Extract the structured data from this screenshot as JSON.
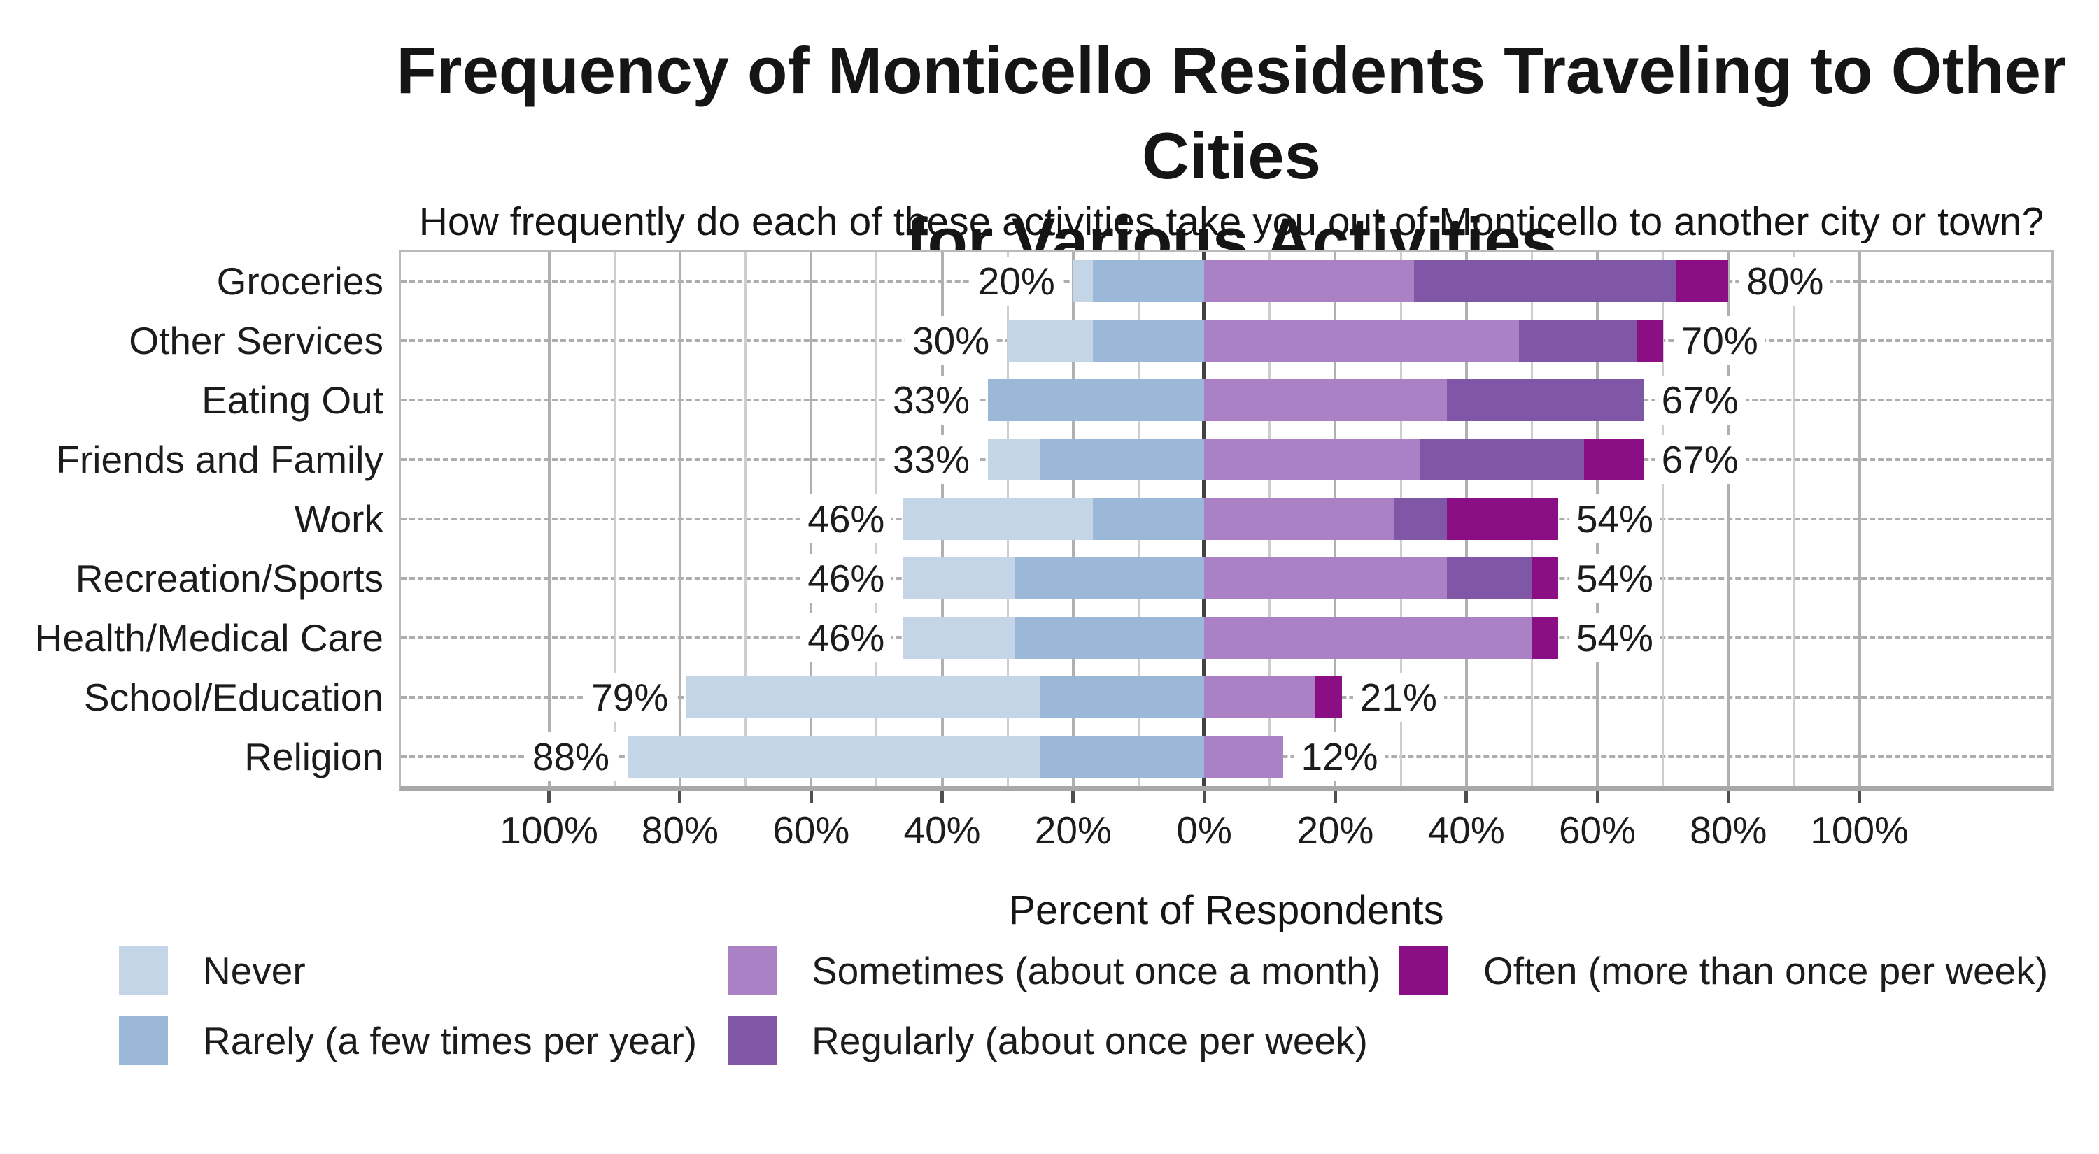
{
  "title_line1": "Frequency of Monticello Residents Traveling to Other Cities",
  "title_line2": "for Various Activities",
  "subtitle": "How frequently do each of these activities take you out of Monticello to another city or town?",
  "axis_title": "Percent of Respondents",
  "chart_data": {
    "type": "diverging_stacked_bar",
    "orientation": "horizontal",
    "categories": [
      "Groceries",
      "Other Services",
      "Eating Out",
      "Friends and Family",
      "Work",
      "Recreation/Sports",
      "Health/Medical Care",
      "School/Education",
      "Religion"
    ],
    "series": [
      {
        "name": "Never",
        "side": "left",
        "color": "#c4d5e8",
        "values": [
          3,
          13,
          0,
          8,
          29,
          17,
          17,
          54,
          63
        ]
      },
      {
        "name": "Rarely (a few times per year)",
        "side": "left",
        "color": "#9cb8d8",
        "values": [
          17,
          17,
          33,
          25,
          17,
          29,
          29,
          25,
          25
        ]
      },
      {
        "name": "Sometimes (about once a month)",
        "side": "right",
        "color": "#a981c4",
        "values": [
          32,
          48,
          37,
          33,
          29,
          37,
          50,
          17,
          12
        ]
      },
      {
        "name": "Regularly (about once per week)",
        "side": "right",
        "color": "#8056a6",
        "values": [
          40,
          18,
          30,
          25,
          8,
          13,
          0,
          0,
          0
        ]
      },
      {
        "name": "Often (more than once per week)",
        "side": "right",
        "color": "#8b0f84",
        "values": [
          8,
          4,
          0,
          9,
          17,
          4,
          4,
          4,
          0
        ]
      }
    ],
    "left_total_labels": [
      "20%",
      "30%",
      "33%",
      "33%",
      "46%",
      "46%",
      "46%",
      "79%",
      "88%"
    ],
    "right_total_labels": [
      "80%",
      "70%",
      "67%",
      "67%",
      "54%",
      "54%",
      "54%",
      "21%",
      "12%"
    ],
    "x_ticks": [
      {
        "p": -100,
        "label": "100%"
      },
      {
        "p": -80,
        "label": "80%"
      },
      {
        "p": -60,
        "label": "60%"
      },
      {
        "p": -40,
        "label": "40%"
      },
      {
        "p": -20,
        "label": "20%"
      },
      {
        "p": 0,
        "label": "0%"
      },
      {
        "p": 20,
        "label": "20%"
      },
      {
        "p": 40,
        "label": "40%"
      },
      {
        "p": 60,
        "label": "60%"
      },
      {
        "p": 80,
        "label": "80%"
      },
      {
        "p": 100,
        "label": "100%"
      }
    ],
    "xlim": [
      -122.6,
      129.3
    ],
    "grid": {
      "minor_step": 10,
      "major_step": 20,
      "extent": 100,
      "grid_on": true
    },
    "legend_position": "bottom"
  },
  "legend": {
    "items": [
      {
        "label": "Never",
        "color": "#c4d5e8",
        "col": 0,
        "row": 0
      },
      {
        "label": "Rarely (a few times per year)",
        "color": "#9cb8d8",
        "col": 0,
        "row": 1
      },
      {
        "label": "Sometimes (about once a month)",
        "color": "#a981c4",
        "col": 1,
        "row": 0
      },
      {
        "label": "Regularly (about once per week)",
        "color": "#8056a6",
        "col": 1,
        "row": 1
      },
      {
        "label": "Often (more than once per week)",
        "color": "#8b0f84",
        "col": 2,
        "row": 0
      }
    ]
  },
  "colors": {
    "never": "#c4d5e8",
    "rarely": "#9cb8d8",
    "sometimes": "#a981c4",
    "regularly": "#8056a6",
    "often": "#8b0f84",
    "zero_line": "#424242",
    "major_grid": "#b0b0b0",
    "minor_grid": "#cecece",
    "row_dash": "#adadad",
    "axis_band": "#a8a8a8",
    "text": "#1c1c1c"
  }
}
